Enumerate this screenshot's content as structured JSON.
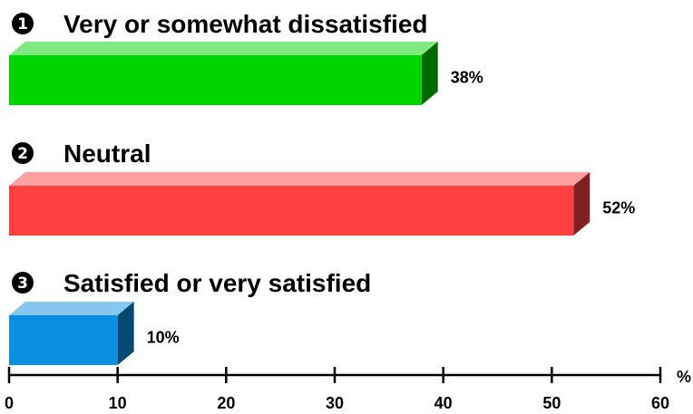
{
  "chart_data": {
    "type": "bar",
    "orientation": "horizontal",
    "categories": [
      "Very or somewhat dissatisfied",
      "Neutral",
      "Satisfied or very satisfied"
    ],
    "markers": [
      "1",
      "2",
      "3"
    ],
    "values": [
      38,
      52,
      10
    ],
    "value_labels": [
      "38%",
      "52%",
      "10%"
    ],
    "colors": [
      "#00d400",
      "#ff4040",
      "#0a8fe0"
    ],
    "xlabel": "%",
    "xlim": [
      0,
      60
    ],
    "xticks": [
      0,
      10,
      20,
      30,
      40,
      50,
      60
    ],
    "xtick_labels": [
      "0",
      "10",
      "20",
      "30",
      "40",
      "50",
      "60"
    ],
    "grid": false,
    "legend": "none",
    "style": "3d"
  }
}
